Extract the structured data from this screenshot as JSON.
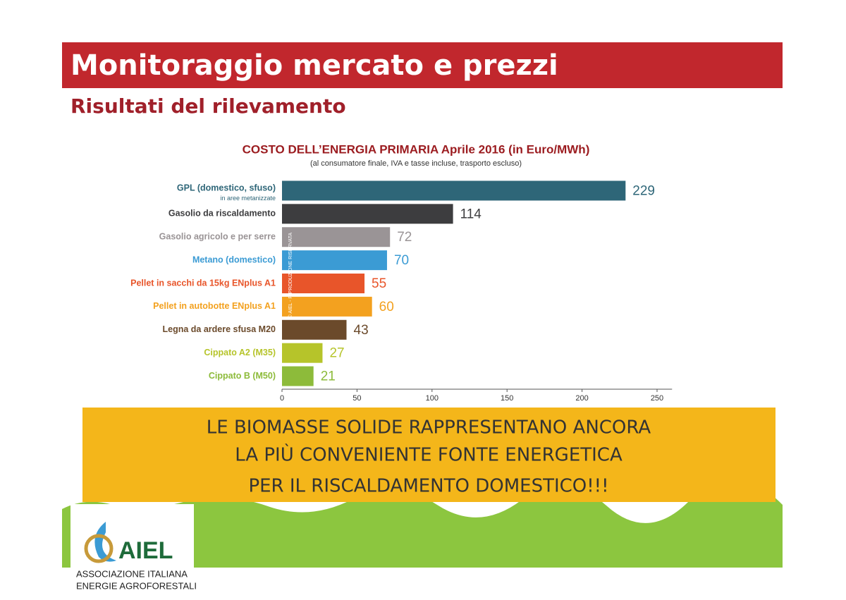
{
  "header": {
    "title": "Monitoraggio mercato e prezzi",
    "subtitle": "Risultati del rilevamento"
  },
  "chart_data": {
    "type": "hbar",
    "title": "COSTO DELL’ENERGIA PRIMARIA   Aprile 2016 (in Euro/MWh)",
    "subtitle": "(al consumatore finale, IVA e tasse incluse, trasporto escluso)",
    "annotation": "in aree metanizzate",
    "watermark": "© AIEL - RIPRODUZIONE RISERVATA",
    "categories": [
      "GPL (domestico, sfuso)",
      "Gasolio da riscaldamento",
      "Gasolio agricolo e per serre",
      "Metano (domestico)",
      "Pellet in sacchi da 15kg ENplus A1",
      "Pellet in autobotte ENplus A1",
      "Legna da ardere sfusa M20",
      "Cippato A2 (M35)",
      "Cippato B (M50)"
    ],
    "values": [
      229,
      114,
      72,
      70,
      55,
      60,
      43,
      27,
      21
    ],
    "colors": [
      "#2e6678",
      "#3d3d3f",
      "#9a9496",
      "#3b9bd4",
      "#e8552a",
      "#f3a11f",
      "#6b4a2b",
      "#b6c42a",
      "#8dbb3a"
    ],
    "xlim": [
      0,
      260
    ],
    "xticks": [
      0,
      50,
      100,
      150,
      200,
      250
    ]
  },
  "banner": {
    "lines": [
      "LE BIOMASSE SOLIDE RAPPRESENTANO ANCORA",
      "LA PIÙ CONVENIENTE FONTE ENERGETICA",
      "PER IL RISCALDAMENTO DOMESTICO!!!"
    ]
  },
  "logo": {
    "name": "AIEL",
    "lines": [
      "ASSOCIAZIONE ITALIANA",
      "ENERGIE AGROFORESTALI"
    ]
  }
}
